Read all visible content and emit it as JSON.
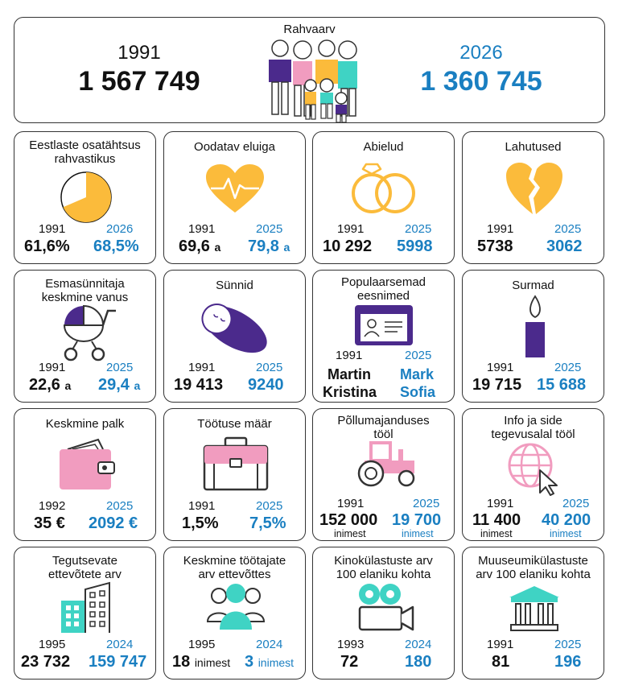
{
  "population": {
    "title": "Rahvaarv",
    "year1": "1991",
    "value1": "1 567 749",
    "year2": "2026",
    "value2": "1 360 745"
  },
  "colors": {
    "accent_blue": "#1a7fc1",
    "yellow": "#fbbb3b",
    "purple": "#4b2a8c",
    "pink": "#f19cbf",
    "teal": "#3fd3c4"
  },
  "cards": {
    "estonians": {
      "title": "Eestlaste osatähtsus rahvastikus",
      "icon": "pie-chart-icon",
      "year1": "1991",
      "year2": "2026",
      "value1": "61,6%",
      "value2": "68,5%",
      "share_percent": 68.5
    },
    "life": {
      "title": "Oodatav eluiga",
      "icon": "heart-pulse-icon",
      "year1": "1991",
      "year2": "2025",
      "value1": "69,6",
      "unit1": "a",
      "value2": "79,8",
      "unit2": "a"
    },
    "marriages": {
      "title": "Abielud",
      "icon": "rings-icon",
      "year1": "1991",
      "year2": "2025",
      "value1": "10 292",
      "value2": "5998"
    },
    "divorces": {
      "title": "Lahutused",
      "icon": "broken-heart-icon",
      "year1": "1991",
      "year2": "2025",
      "value1": "5738",
      "value2": "3062"
    },
    "mother_age": {
      "title": "Esmasünnitaja keskmine vanus",
      "icon": "stroller-icon",
      "year1": "1991",
      "year2": "2025",
      "value1": "22,6",
      "unit1": "a",
      "value2": "29,4",
      "unit2": "a"
    },
    "births": {
      "title": "Sünnid",
      "icon": "swaddled-baby-icon",
      "year1": "1991",
      "year2": "2025",
      "value1": "19 413",
      "value2": "9240"
    },
    "names": {
      "title": "Populaarsemad eesnimed",
      "icon": "id-card-icon",
      "year1": "1991",
      "year2": "2025",
      "name1a": "Martin",
      "name1b": "Kristina",
      "name2a": "Mark",
      "name2b": "Sofia"
    },
    "deaths": {
      "title": "Surmad",
      "icon": "candle-icon",
      "year1": "1991",
      "year2": "2025",
      "value1": "19 715",
      "value2": "15 688"
    },
    "salary": {
      "title": "Keskmine palk",
      "icon": "wallet-icon",
      "year1": "1992",
      "year2": "2025",
      "value1": "35 €",
      "value2": "2092 €"
    },
    "unemployment": {
      "title": "Töötuse määr",
      "icon": "briefcase-icon",
      "year1": "1991",
      "year2": "2025",
      "value1": "1,5%",
      "value2": "7,5%"
    },
    "agriculture": {
      "title": "Põllumajanduses tööl",
      "icon": "tractor-icon",
      "year1": "1991",
      "year2": "2025",
      "value1": "152 000",
      "value2": "19 700",
      "unit": "inimest"
    },
    "ict": {
      "title": "Info ja side tegevusalal tööl",
      "icon": "globe-cursor-icon",
      "year1": "1991",
      "year2": "2025",
      "value1": "11 400",
      "value2": "40 200",
      "unit": "inimest"
    },
    "companies": {
      "title": "Tegutsevate ettevõtete arv",
      "icon": "buildings-icon",
      "year1": "1995",
      "year2": "2024",
      "value1": "23 732",
      "value2": "159 747"
    },
    "employees": {
      "title": "Keskmine töötajate arv ettevõttes",
      "icon": "people-group-icon",
      "year1": "1995",
      "year2": "2024",
      "value1": "18",
      "value2": "3",
      "unit": "inimest"
    },
    "cinema": {
      "title": "Kinokülastuste arv 100 elaniku kohta",
      "icon": "movie-camera-icon",
      "year1": "1993",
      "year2": "2024",
      "value1": "72",
      "value2": "180"
    },
    "museum": {
      "title": "Muuseumikülastuste arv 100 elaniku kohta",
      "icon": "museum-icon",
      "year1": "1991",
      "year2": "2025",
      "value1": "81",
      "value2": "196"
    }
  }
}
